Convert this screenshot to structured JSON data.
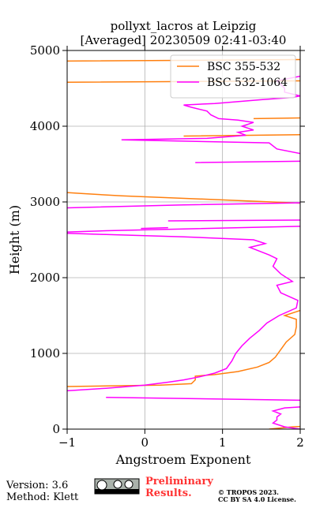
{
  "chart_data": {
    "type": "line",
    "title": [
      "pollyxt_lacros at Leipzig",
      "[Averaged] 20230509 02:41-03:40"
    ],
    "x_label": "Angstroem Exponent",
    "y_label": "Height (m)",
    "xlim": [
      -1,
      2
    ],
    "xticks": [
      {
        "value": -1,
        "label": "−1"
      },
      0,
      1,
      2
    ],
    "ylim": [
      0,
      5000
    ],
    "yticks": [
      0,
      1000,
      2000,
      3000,
      4000,
      5000
    ],
    "grid": true,
    "legend": "upper right",
    "series": [
      {
        "name": "BSC 355-532",
        "color": "#ff7f0e",
        "heights": [
          0,
          30,
          40,
          50,
          560,
          580,
          600,
          650,
          700,
          720,
          760,
          820,
          880,
          950,
          1050,
          1150,
          1250,
          1350,
          1450,
          1500,
          1550,
          1600,
          1700,
          2980,
          3040,
          3080,
          3110,
          3130,
          3200,
          3870,
          3890,
          3900,
          4100,
          4110,
          4200,
          4580,
          4600,
          4700,
          4860,
          4880
        ],
        "values": [
          1.6,
          1.9,
          2.1,
          null,
          -1.1,
          0.2,
          0.6,
          0.65,
          0.65,
          0.9,
          1.2,
          1.45,
          1.6,
          1.68,
          1.75,
          1.82,
          1.93,
          1.95,
          1.95,
          1.8,
          1.95,
          2.1,
          null,
          2.1,
          0.7,
          -0.3,
          -0.8,
          -1.1,
          null,
          0.5,
          2.1,
          null,
          1.4,
          2.1,
          null,
          -1.1,
          2.1,
          null,
          -1.1,
          2.1
        ]
      },
      {
        "name": "BSC 532-1064",
        "color": "#ff00ff",
        "heights": [
          0,
          30,
          80,
          120,
          160,
          200,
          240,
          280,
          300,
          340,
          380,
          420,
          460,
          500,
          540,
          580,
          620,
          650,
          690,
          740,
          800,
          900,
          1000,
          1100,
          1200,
          1300,
          1400,
          1500,
          1600,
          1700,
          1800,
          1900,
          1950,
          2050,
          2150,
          2250,
          2300,
          2400,
          2450,
          2500,
          2540,
          2570,
          2590,
          2595,
          2600,
          2620,
          2680,
          2685,
          2650,
          2660,
          2700,
          2750,
          2760,
          2800,
          2920,
          2960,
          2990,
          3100,
          3520,
          3540,
          3580,
          3620,
          3700,
          3780,
          3820,
          3840,
          3880,
          3920,
          3950,
          4000,
          4050,
          4080,
          4100,
          4150,
          4200,
          4250,
          4280,
          4300,
          4350,
          4380,
          4400,
          4450,
          4500,
          4600,
          4680
        ],
        "values": [
          2.0,
          1.8,
          1.65,
          1.7,
          1.7,
          1.75,
          1.65,
          1.8,
          2.1,
          null,
          2.1,
          -0.5,
          null,
          -1.1,
          -0.5,
          0.0,
          0.3,
          0.5,
          0.7,
          0.9,
          1.05,
          1.12,
          1.17,
          1.25,
          1.35,
          1.47,
          1.57,
          1.73,
          1.95,
          1.97,
          1.75,
          1.7,
          1.9,
          1.75,
          1.65,
          1.7,
          1.6,
          1.35,
          1.55,
          1.4,
          0.5,
          -0.5,
          -1.1,
          null,
          -1.1,
          -0.5,
          2.1,
          null,
          -0.05,
          0.3,
          null,
          0.3,
          2.1,
          null,
          -1.1,
          0.5,
          2.1,
          null,
          0.65,
          2.1,
          null,
          2.1,
          1.7,
          1.6,
          -0.3,
          0.8,
          1.3,
          1.2,
          1.4,
          1.25,
          1.4,
          1.2,
          0.95,
          0.85,
          0.8,
          0.6,
          0.5,
          0.9,
          1.5,
          1.9,
          2.0,
          1.8,
          1.8,
          1.7,
          2.1
        ]
      }
    ]
  },
  "footer": {
    "version": "Version: 3.6",
    "method": "Method: Klett",
    "preliminary": [
      "Preliminary",
      "Results."
    ],
    "copyright": [
      "© TROPOS 2023.",
      "CC BY SA 4.0 License."
    ]
  }
}
